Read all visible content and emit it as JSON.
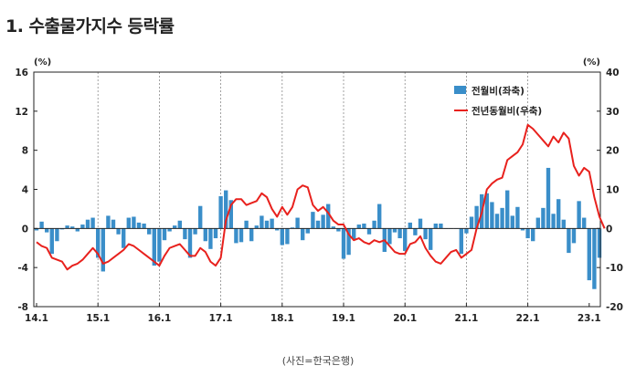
{
  "page": {
    "title": "1. 수출물가지수 등락률",
    "caption": "(사진=한국은행)"
  },
  "chart_data": {
    "type": "bar+line",
    "title": "1. 수출물가지수 등락률",
    "left_axis": {
      "unit": "(%)",
      "min": -8,
      "max": 16,
      "ticks": [
        -8,
        -4,
        0,
        4,
        8,
        12,
        16
      ]
    },
    "right_axis": {
      "unit": "(%)",
      "min": -20,
      "max": 40,
      "ticks": [
        -20,
        -10,
        0,
        10,
        20,
        30,
        40
      ]
    },
    "x_tick_labels": [
      "14.1",
      "15.1",
      "16.1",
      "17.1",
      "18.1",
      "19.1",
      "20.1",
      "21.1",
      "22.1",
      "23.1"
    ],
    "period_start": "2014-01",
    "period_end": "2023-01",
    "grid": {
      "vertical_dashed_at_year_starts": true
    },
    "legend_position": "top-right",
    "colors": {
      "bar": "#3a8ec9",
      "line": "#e8211d"
    },
    "series": [
      {
        "name": "전월비(좌축)",
        "type": "bar",
        "axis": "left",
        "values": [
          -0.2,
          0.7,
          -0.4,
          -2.6,
          -1.3,
          -0.1,
          0.3,
          0.2,
          -0.3,
          0.4,
          0.9,
          1.1,
          -3.0,
          -4.4,
          1.3,
          0.9,
          -0.6,
          -2.0,
          1.1,
          1.2,
          0.6,
          0.5,
          -0.6,
          -3.8,
          -3.4,
          -1.2,
          -0.3,
          0.3,
          0.8,
          -1.1,
          -3.0,
          -0.6,
          2.3,
          -1.3,
          -2.1,
          -1.0,
          3.3,
          3.9,
          2.9,
          -1.5,
          -1.4,
          0.8,
          -1.3,
          0.3,
          1.3,
          0.8,
          1.0,
          -0.2,
          -1.7,
          -1.6,
          0.1,
          1.1,
          -1.2,
          -0.5,
          1.7,
          0.8,
          1.4,
          2.5,
          0.2,
          -0.3,
          -3.1,
          -2.7,
          -1.1,
          0.4,
          0.5,
          -0.6,
          0.8,
          2.5,
          -2.4,
          -1.6,
          -0.4,
          -1.0,
          -2.3,
          0.6,
          -0.7,
          1.0,
          -1.1,
          -2.2,
          0.5,
          0.5,
          0.0,
          0.0,
          0.0,
          -2.6,
          -0.5,
          1.2,
          2.3,
          3.5,
          3.6,
          2.7,
          1.5,
          2.1,
          3.9,
          1.3,
          2.2,
          -0.2,
          -1.0,
          -1.3,
          1.1,
          2.1,
          6.2,
          1.5,
          3.0,
          0.9,
          -2.5,
          -1.5,
          2.8,
          1.1,
          -5.3,
          -6.2,
          -3.0
        ]
      },
      {
        "name": "전년동월비(우축)",
        "type": "line",
        "axis": "right",
        "values": [
          -3.5,
          -4.5,
          -5.0,
          -7.5,
          -8.0,
          -8.5,
          -10.5,
          -9.5,
          -9.0,
          -8.0,
          -6.5,
          -5.0,
          -6.5,
          -9.0,
          -8.5,
          -7.5,
          -6.5,
          -5.5,
          -4.0,
          -4.5,
          -5.5,
          -6.5,
          -7.5,
          -8.5,
          -9.5,
          -7.0,
          -5.0,
          -4.5,
          -4.0,
          -5.5,
          -7.0,
          -7.0,
          -5.0,
          -6.0,
          -8.5,
          -9.5,
          -7.5,
          2.0,
          6.0,
          7.5,
          7.5,
          6.0,
          6.5,
          7.0,
          9.0,
          8.0,
          5.0,
          3.0,
          5.5,
          3.5,
          5.5,
          10.0,
          11.0,
          10.5,
          6.0,
          4.5,
          5.5,
          4.0,
          2.0,
          1.0,
          1.0,
          -1.5,
          -3.0,
          -2.5,
          -3.5,
          -4.0,
          -3.0,
          -3.5,
          -3.0,
          -4.5,
          -6.0,
          -6.5,
          -6.5,
          -4.0,
          -3.5,
          -2.0,
          -5.0,
          -7.0,
          -8.5,
          -9.0,
          -7.5,
          -6.0,
          -5.5,
          -7.5,
          -6.5,
          -5.5,
          0.0,
          4.0,
          10.0,
          11.5,
          12.5,
          13.0,
          17.5,
          18.5,
          19.5,
          21.5,
          26.5,
          25.5,
          24.0,
          22.5,
          21.0,
          23.5,
          22.0,
          24.5,
          23.0,
          16.0,
          13.5,
          15.5,
          14.5,
          8.0,
          3.0,
          0.0
        ]
      }
    ]
  }
}
